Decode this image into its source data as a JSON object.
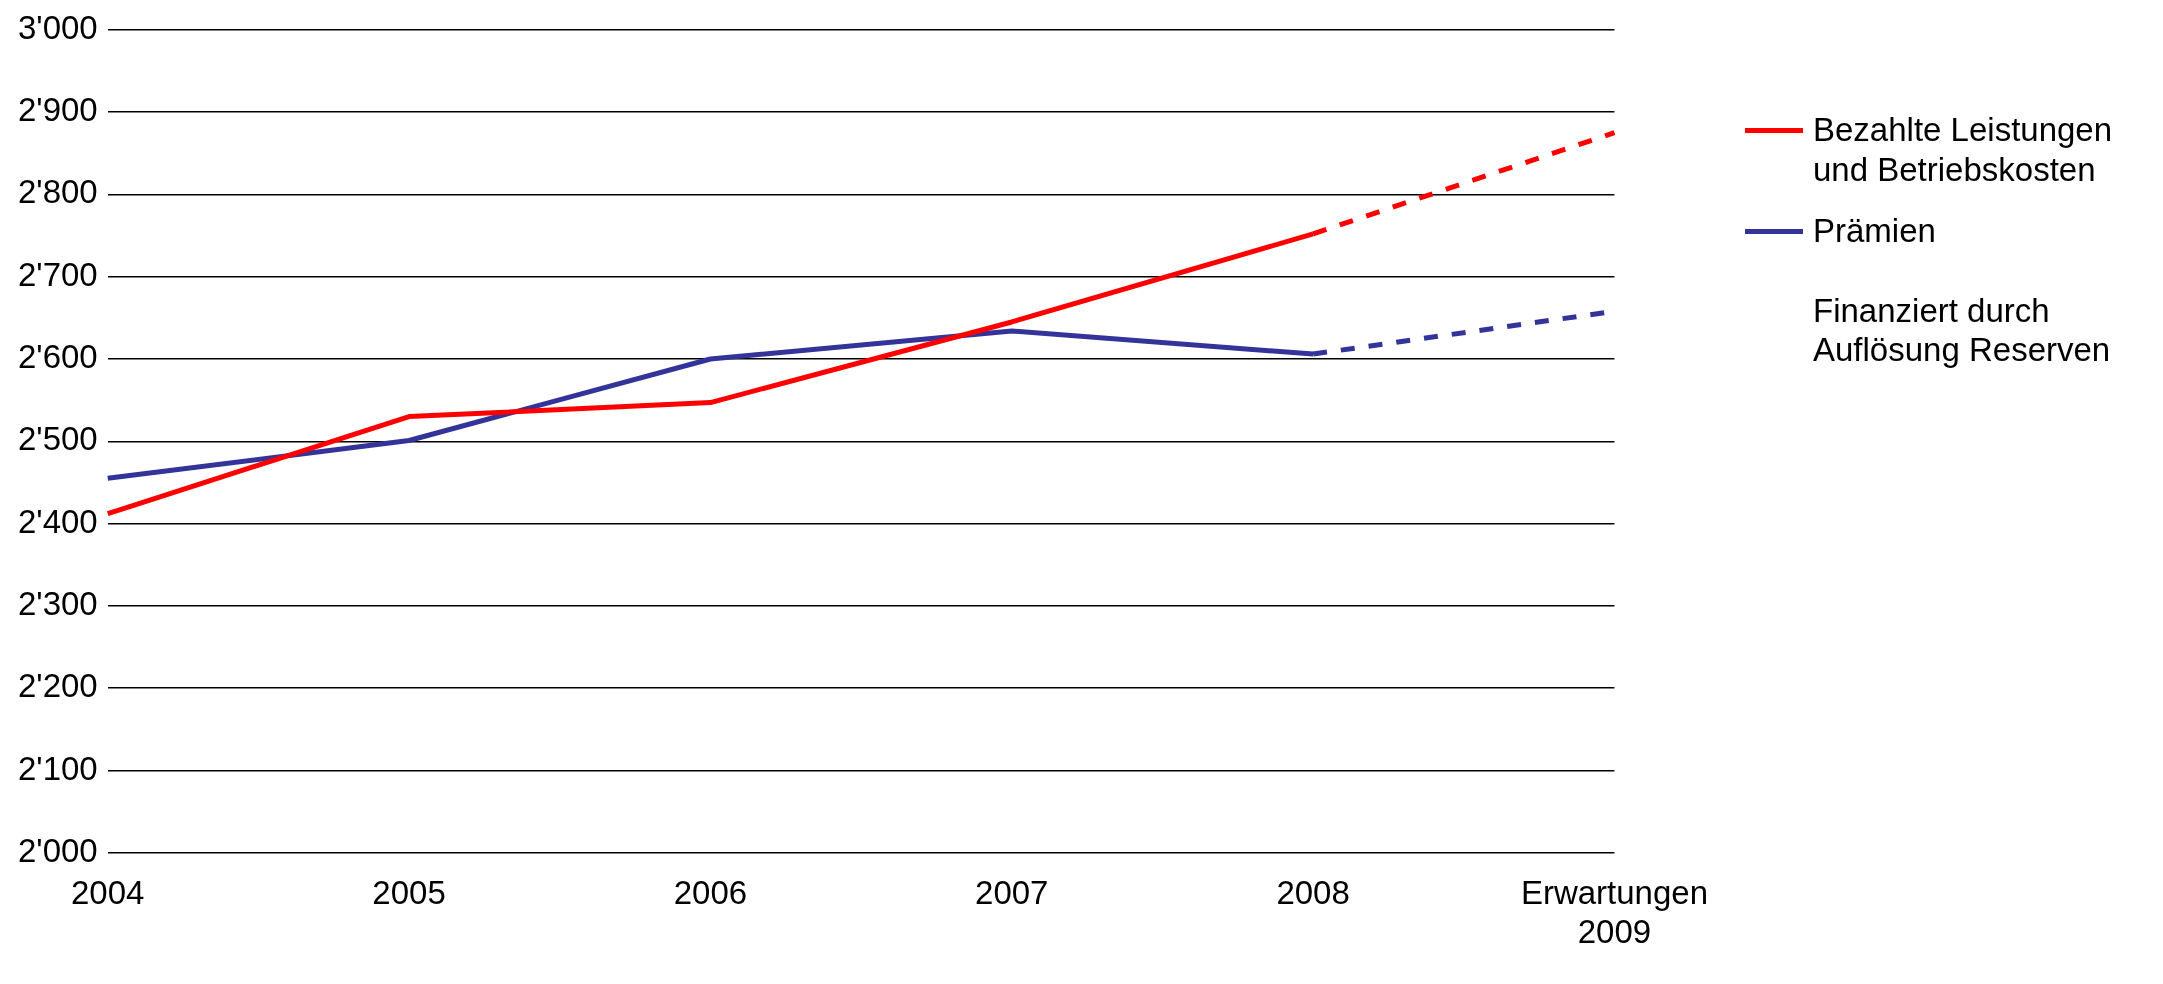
{
  "chart_data": {
    "type": "line",
    "categories": [
      "2004",
      "2005",
      "2006",
      "2007",
      "2008",
      "Erwartungen 2009"
    ],
    "series": [
      {
        "name": "Bezahlte Leistungen und Betriebskosten",
        "color": "#ff0000",
        "values": [
          2412,
          2530,
          2547,
          2645,
          2752,
          null
        ]
      },
      {
        "name": "Prämien",
        "color": "#333399",
        "values": [
          2455,
          2501,
          2600,
          2634,
          2606,
          null
        ]
      },
      {
        "color": "#ff0000",
        "line_style": "dashed",
        "values": [
          null,
          null,
          null,
          null,
          2752,
          2875
        ]
      },
      {
        "color": "#333399",
        "line_style": "dashed",
        "values": [
          null,
          null,
          null,
          null,
          2606,
          2658
        ]
      }
    ],
    "annotations": [
      "Finanziert durch Auflösung Reserven"
    ],
    "ylim": [
      2000,
      3000
    ],
    "yticks": [
      {
        "value": 2000,
        "label": "2'000"
      },
      {
        "value": 2100,
        "label": "2'100"
      },
      {
        "value": 2200,
        "label": "2'200"
      },
      {
        "value": 2300,
        "label": "2'300"
      },
      {
        "value": 2400,
        "label": "2'400"
      },
      {
        "value": 2500,
        "label": "2'500"
      },
      {
        "value": 2600,
        "label": "2'600"
      },
      {
        "value": 2700,
        "label": "2'700"
      },
      {
        "value": 2800,
        "label": "2'800"
      },
      {
        "value": 2900,
        "label": "2'900"
      },
      {
        "value": 3000,
        "label": "3'000"
      }
    ],
    "grid": "y",
    "legend": "right",
    "marker": "none",
    "line_style": "solid"
  }
}
